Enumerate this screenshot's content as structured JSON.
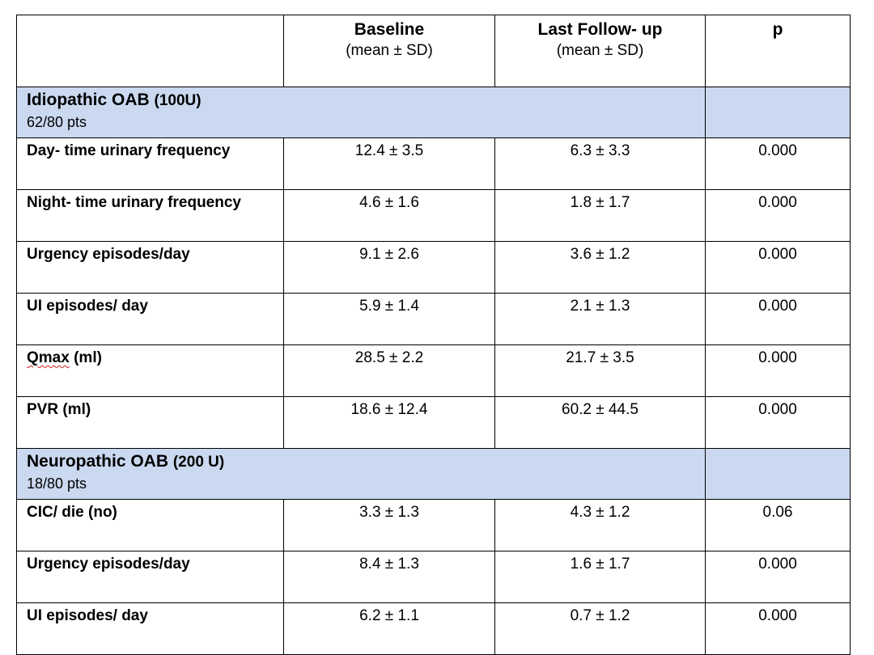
{
  "header": {
    "blank": "",
    "baseline": {
      "title": "Baseline",
      "sub": "(mean ± SD)"
    },
    "last_followup": {
      "title": "Last Follow- up",
      "sub": "(mean ± SD)"
    },
    "p": "p"
  },
  "group1": {
    "title": "Idiopathic OAB",
    "units": "(100U)",
    "subtitle": "62/80 pts",
    "rows": [
      {
        "label": "Day- time urinary frequency",
        "baseline": "12.4 ± 3.5",
        "last": "6.3 ± 3.3",
        "p": "0.000"
      },
      {
        "label": "Night- time urinary frequency",
        "baseline": "4.6 ± 1.6",
        "last": "1.8 ± 1.7",
        "p": "0.000"
      },
      {
        "label": "Urgency episodes/day",
        "baseline": "9.1 ± 2.6",
        "last": "3.6 ± 1.2",
        "p": "0.000"
      },
      {
        "label": "UI episodes/ day",
        "baseline": "5.9 ± 1.4",
        "last": "2.1 ± 1.3",
        "p": "0.000"
      },
      {
        "label_word": "Qmax",
        "label_rest": " (ml)",
        "baseline": "28.5 ± 2.2",
        "last": "21.7 ± 3.5",
        "p": "0.000"
      },
      {
        "label": "PVR (ml)",
        "baseline": "18.6 ± 12.4",
        "last": "60.2 ± 44.5",
        "p": "0.000"
      }
    ]
  },
  "group2": {
    "title": "Neuropathic OAB",
    "units": "(200 U)",
    "subtitle": "18/80 pts",
    "rows": [
      {
        "label": "CIC/ die (no)",
        "baseline": "3.3 ± 1.3",
        "last": "4.3 ± 1.2",
        "p": "0.06"
      },
      {
        "label": "Urgency episodes/day",
        "baseline": "8.4 ± 1.3",
        "last": "1.6 ± 1.7",
        "p": "0.000"
      },
      {
        "label": "UI episodes/ day",
        "baseline": "6.2 ± 1.1",
        "last": "0.7 ± 1.2",
        "p": "0.000"
      }
    ]
  }
}
